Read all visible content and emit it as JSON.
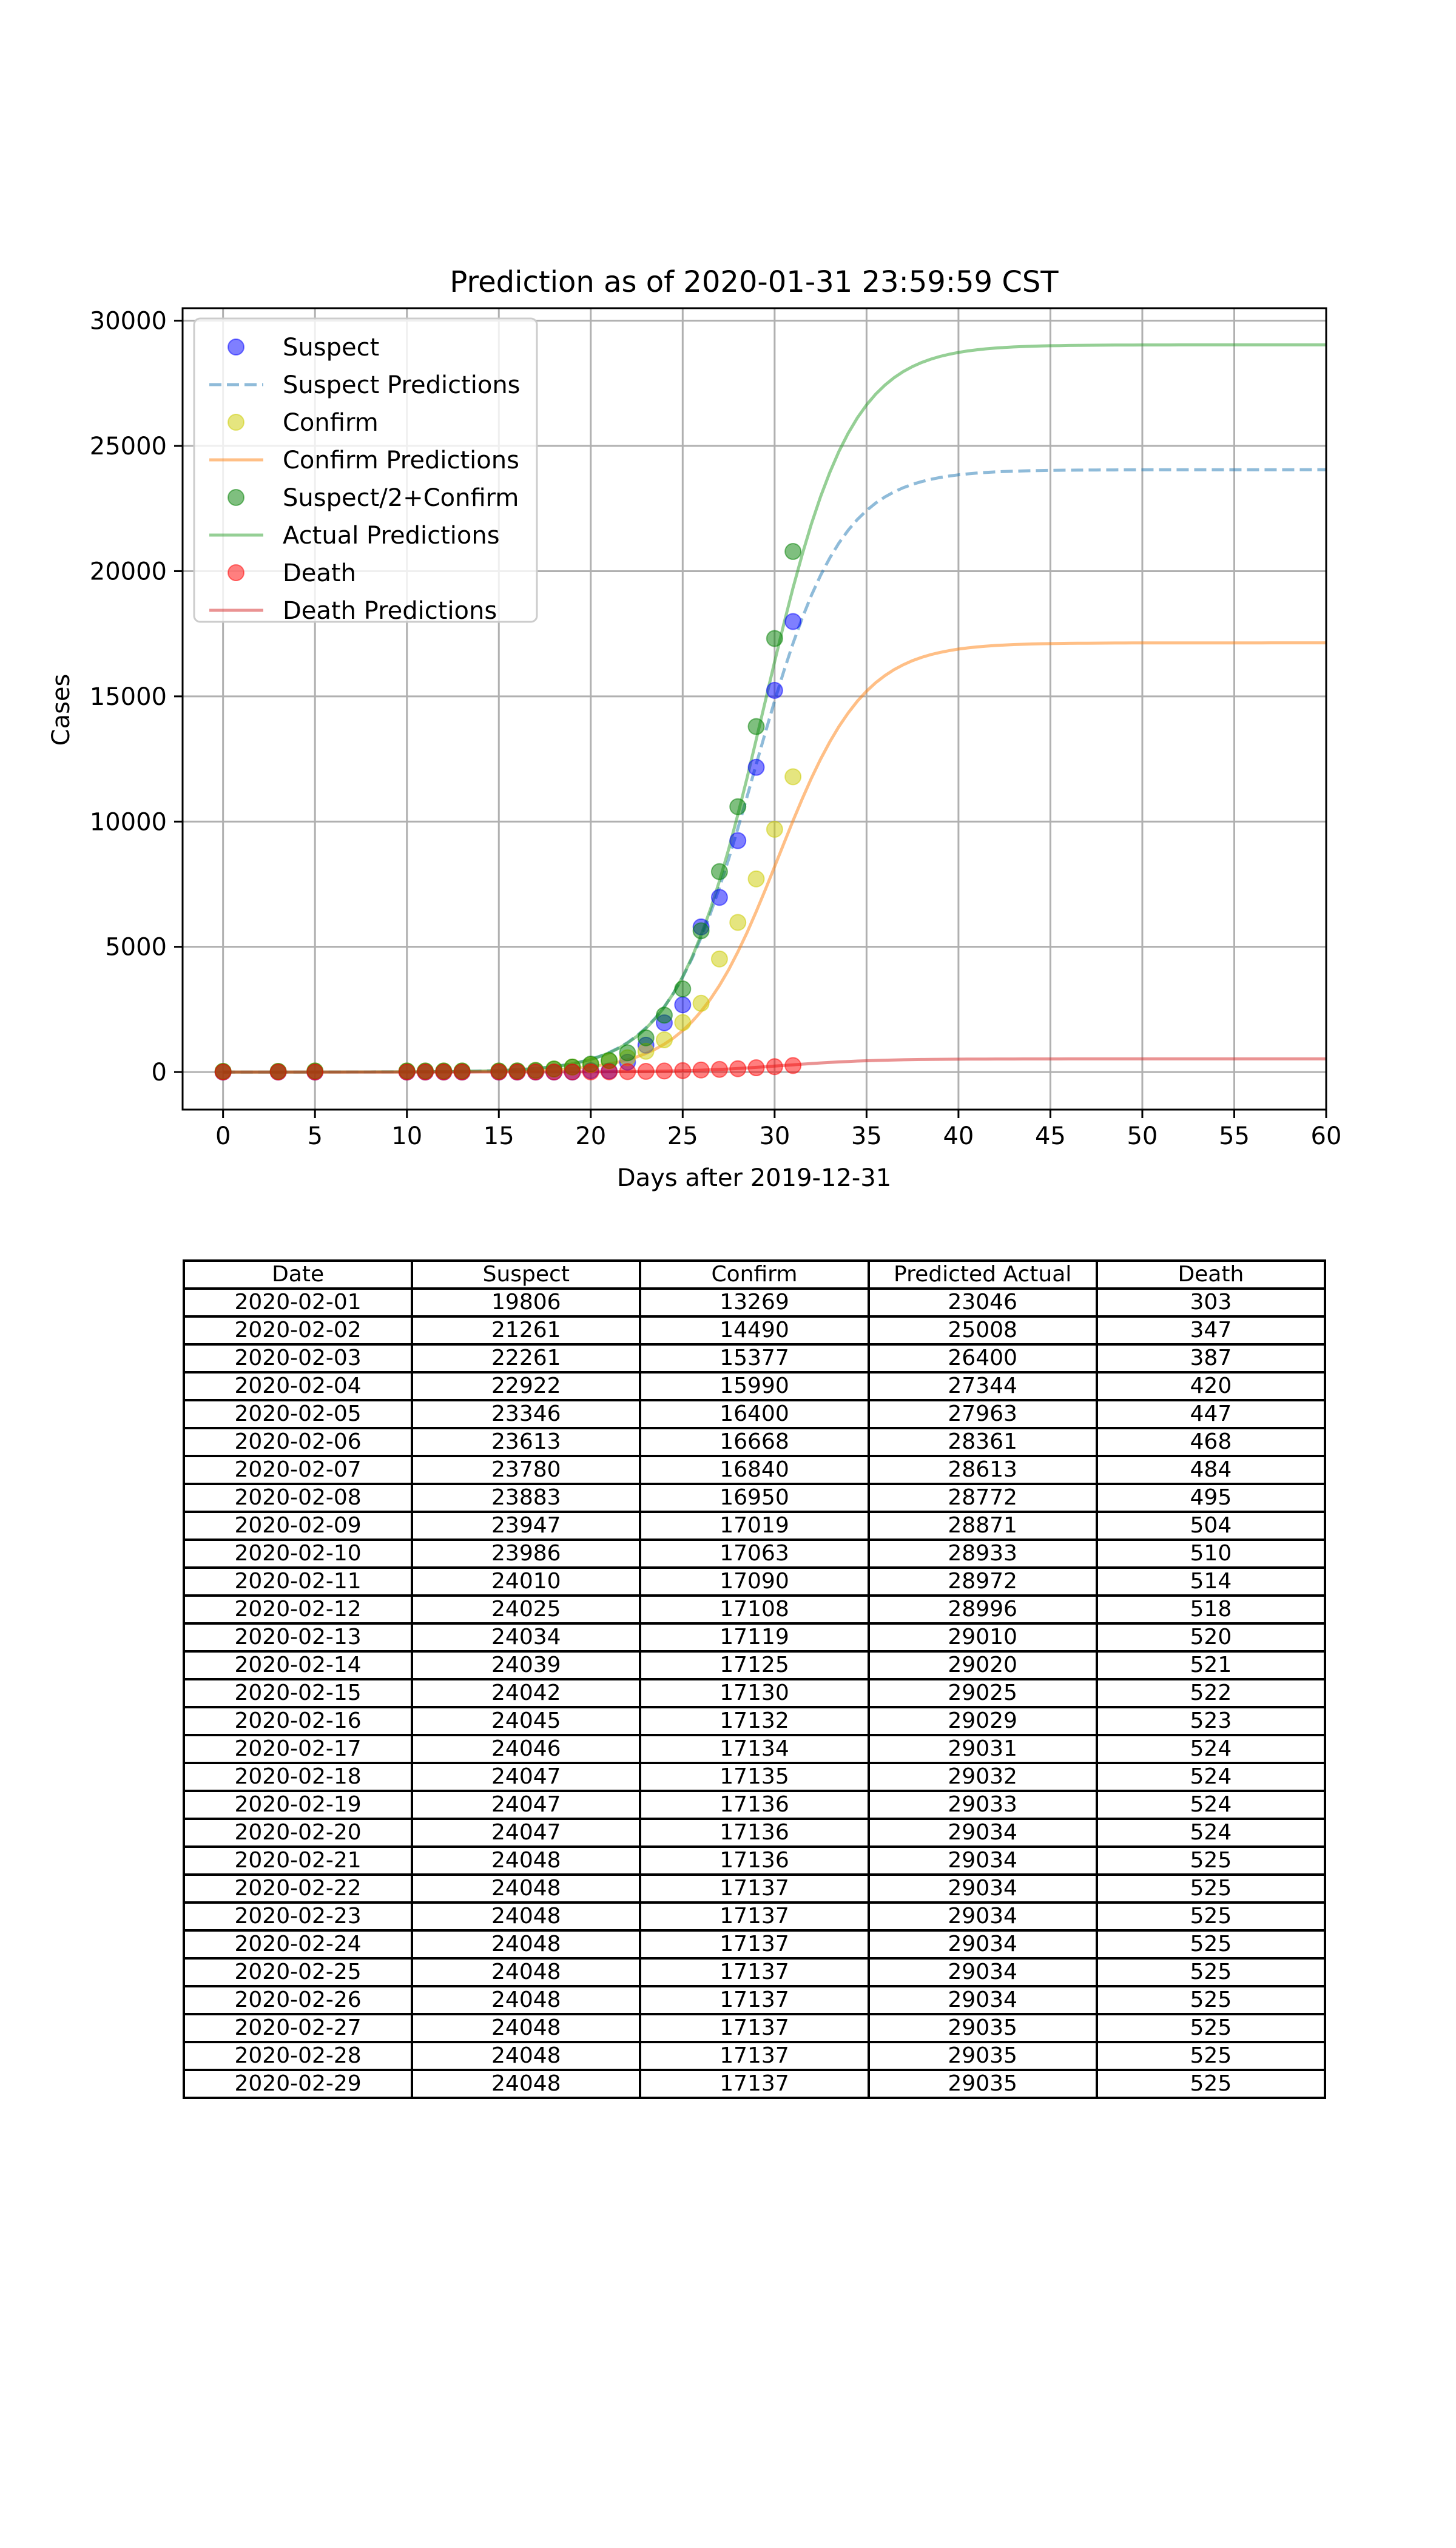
{
  "chart_data": {
    "type": "line",
    "title": "Prediction as of 2020-01-31 23:59:59 CST",
    "xlabel": "Days after 2019-12-31",
    "ylabel": "Cases",
    "xlim": [
      -2.2,
      60
    ],
    "ylim": [
      -1500,
      30500
    ],
    "xticks": [
      0,
      5,
      10,
      15,
      20,
      25,
      30,
      35,
      40,
      45,
      50,
      55,
      60
    ],
    "yticks": [
      0,
      5000,
      10000,
      15000,
      20000,
      25000,
      30000
    ],
    "grid": true,
    "legend_position": "top-left",
    "scatter_x": [
      0,
      3,
      5,
      10,
      11,
      12,
      13,
      15,
      16,
      17,
      18,
      19,
      20,
      21,
      22,
      23,
      24,
      25,
      26,
      27,
      28,
      29,
      30,
      31
    ],
    "series": [
      {
        "name": "Suspect",
        "kind": "scatter",
        "color": "#0000ff",
        "values": [
          0,
          0,
          0,
          0,
          0,
          0,
          0,
          0,
          0,
          0,
          0,
          0,
          54,
          37,
          393,
          1072,
          1965,
          2684,
          5794,
          6973,
          9239,
          12167,
          15238,
          17988
        ]
      },
      {
        "name": "Suspect Predictions",
        "kind": "line",
        "dash": true,
        "color": "#1f77b4",
        "params": [
          24048,
          28.9,
          0.43
        ]
      },
      {
        "name": "Confirm",
        "kind": "scatter",
        "color": "#cccc00",
        "values": [
          27,
          27,
          41,
          41,
          41,
          41,
          41,
          41,
          45,
          62,
          121,
          198,
          291,
          440,
          571,
          830,
          1287,
          1975,
          2744,
          4515,
          5974,
          7711,
          9692,
          11791
        ]
      },
      {
        "name": "Confirm Predictions",
        "kind": "line",
        "color": "#ff7f0e",
        "params": [
          17137,
          30.2,
          0.43
        ]
      },
      {
        "name": "Suspect/2+Confirm",
        "kind": "scatter",
        "color": "#008000",
        "values": [
          27,
          27,
          41,
          41,
          41,
          41,
          41,
          41,
          45,
          62,
          121,
          198,
          318,
          459,
          768,
          1366,
          2270,
          3317,
          5641,
          8002,
          10594,
          13795,
          17311,
          20785
        ]
      },
      {
        "name": "Actual Predictions",
        "kind": "line",
        "color": "#2ca02c",
        "params": [
          29035,
          29.4,
          0.43
        ]
      },
      {
        "name": "Death",
        "kind": "scatter",
        "color": "#ff0000",
        "values": [
          0,
          0,
          0,
          0,
          1,
          1,
          1,
          2,
          2,
          2,
          3,
          3,
          6,
          9,
          17,
          25,
          41,
          56,
          80,
          106,
          132,
          170,
          213,
          259
        ]
      },
      {
        "name": "Death Predictions",
        "kind": "line",
        "color": "#d62728",
        "params": [
          525,
          30.5,
          0.4
        ]
      }
    ]
  },
  "table": {
    "headers": [
      "Date",
      "Suspect",
      "Confirm",
      "Predicted Actual",
      "Death"
    ],
    "rows": [
      [
        "2020-02-01",
        "19806",
        "13269",
        "23046",
        "303"
      ],
      [
        "2020-02-02",
        "21261",
        "14490",
        "25008",
        "347"
      ],
      [
        "2020-02-03",
        "22261",
        "15377",
        "26400",
        "387"
      ],
      [
        "2020-02-04",
        "22922",
        "15990",
        "27344",
        "420"
      ],
      [
        "2020-02-05",
        "23346",
        "16400",
        "27963",
        "447"
      ],
      [
        "2020-02-06",
        "23613",
        "16668",
        "28361",
        "468"
      ],
      [
        "2020-02-07",
        "23780",
        "16840",
        "28613",
        "484"
      ],
      [
        "2020-02-08",
        "23883",
        "16950",
        "28772",
        "495"
      ],
      [
        "2020-02-09",
        "23947",
        "17019",
        "28871",
        "504"
      ],
      [
        "2020-02-10",
        "23986",
        "17063",
        "28933",
        "510"
      ],
      [
        "2020-02-11",
        "24010",
        "17090",
        "28972",
        "514"
      ],
      [
        "2020-02-12",
        "24025",
        "17108",
        "28996",
        "518"
      ],
      [
        "2020-02-13",
        "24034",
        "17119",
        "29010",
        "520"
      ],
      [
        "2020-02-14",
        "24039",
        "17125",
        "29020",
        "521"
      ],
      [
        "2020-02-15",
        "24042",
        "17130",
        "29025",
        "522"
      ],
      [
        "2020-02-16",
        "24045",
        "17132",
        "29029",
        "523"
      ],
      [
        "2020-02-17",
        "24046",
        "17134",
        "29031",
        "524"
      ],
      [
        "2020-02-18",
        "24047",
        "17135",
        "29032",
        "524"
      ],
      [
        "2020-02-19",
        "24047",
        "17136",
        "29033",
        "524"
      ],
      [
        "2020-02-20",
        "24047",
        "17136",
        "29034",
        "524"
      ],
      [
        "2020-02-21",
        "24048",
        "17136",
        "29034",
        "525"
      ],
      [
        "2020-02-22",
        "24048",
        "17137",
        "29034",
        "525"
      ],
      [
        "2020-02-23",
        "24048",
        "17137",
        "29034",
        "525"
      ],
      [
        "2020-02-24",
        "24048",
        "17137",
        "29034",
        "525"
      ],
      [
        "2020-02-25",
        "24048",
        "17137",
        "29034",
        "525"
      ],
      [
        "2020-02-26",
        "24048",
        "17137",
        "29034",
        "525"
      ],
      [
        "2020-02-27",
        "24048",
        "17137",
        "29035",
        "525"
      ],
      [
        "2020-02-28",
        "24048",
        "17137",
        "29035",
        "525"
      ],
      [
        "2020-02-29",
        "24048",
        "17137",
        "29035",
        "525"
      ]
    ]
  }
}
